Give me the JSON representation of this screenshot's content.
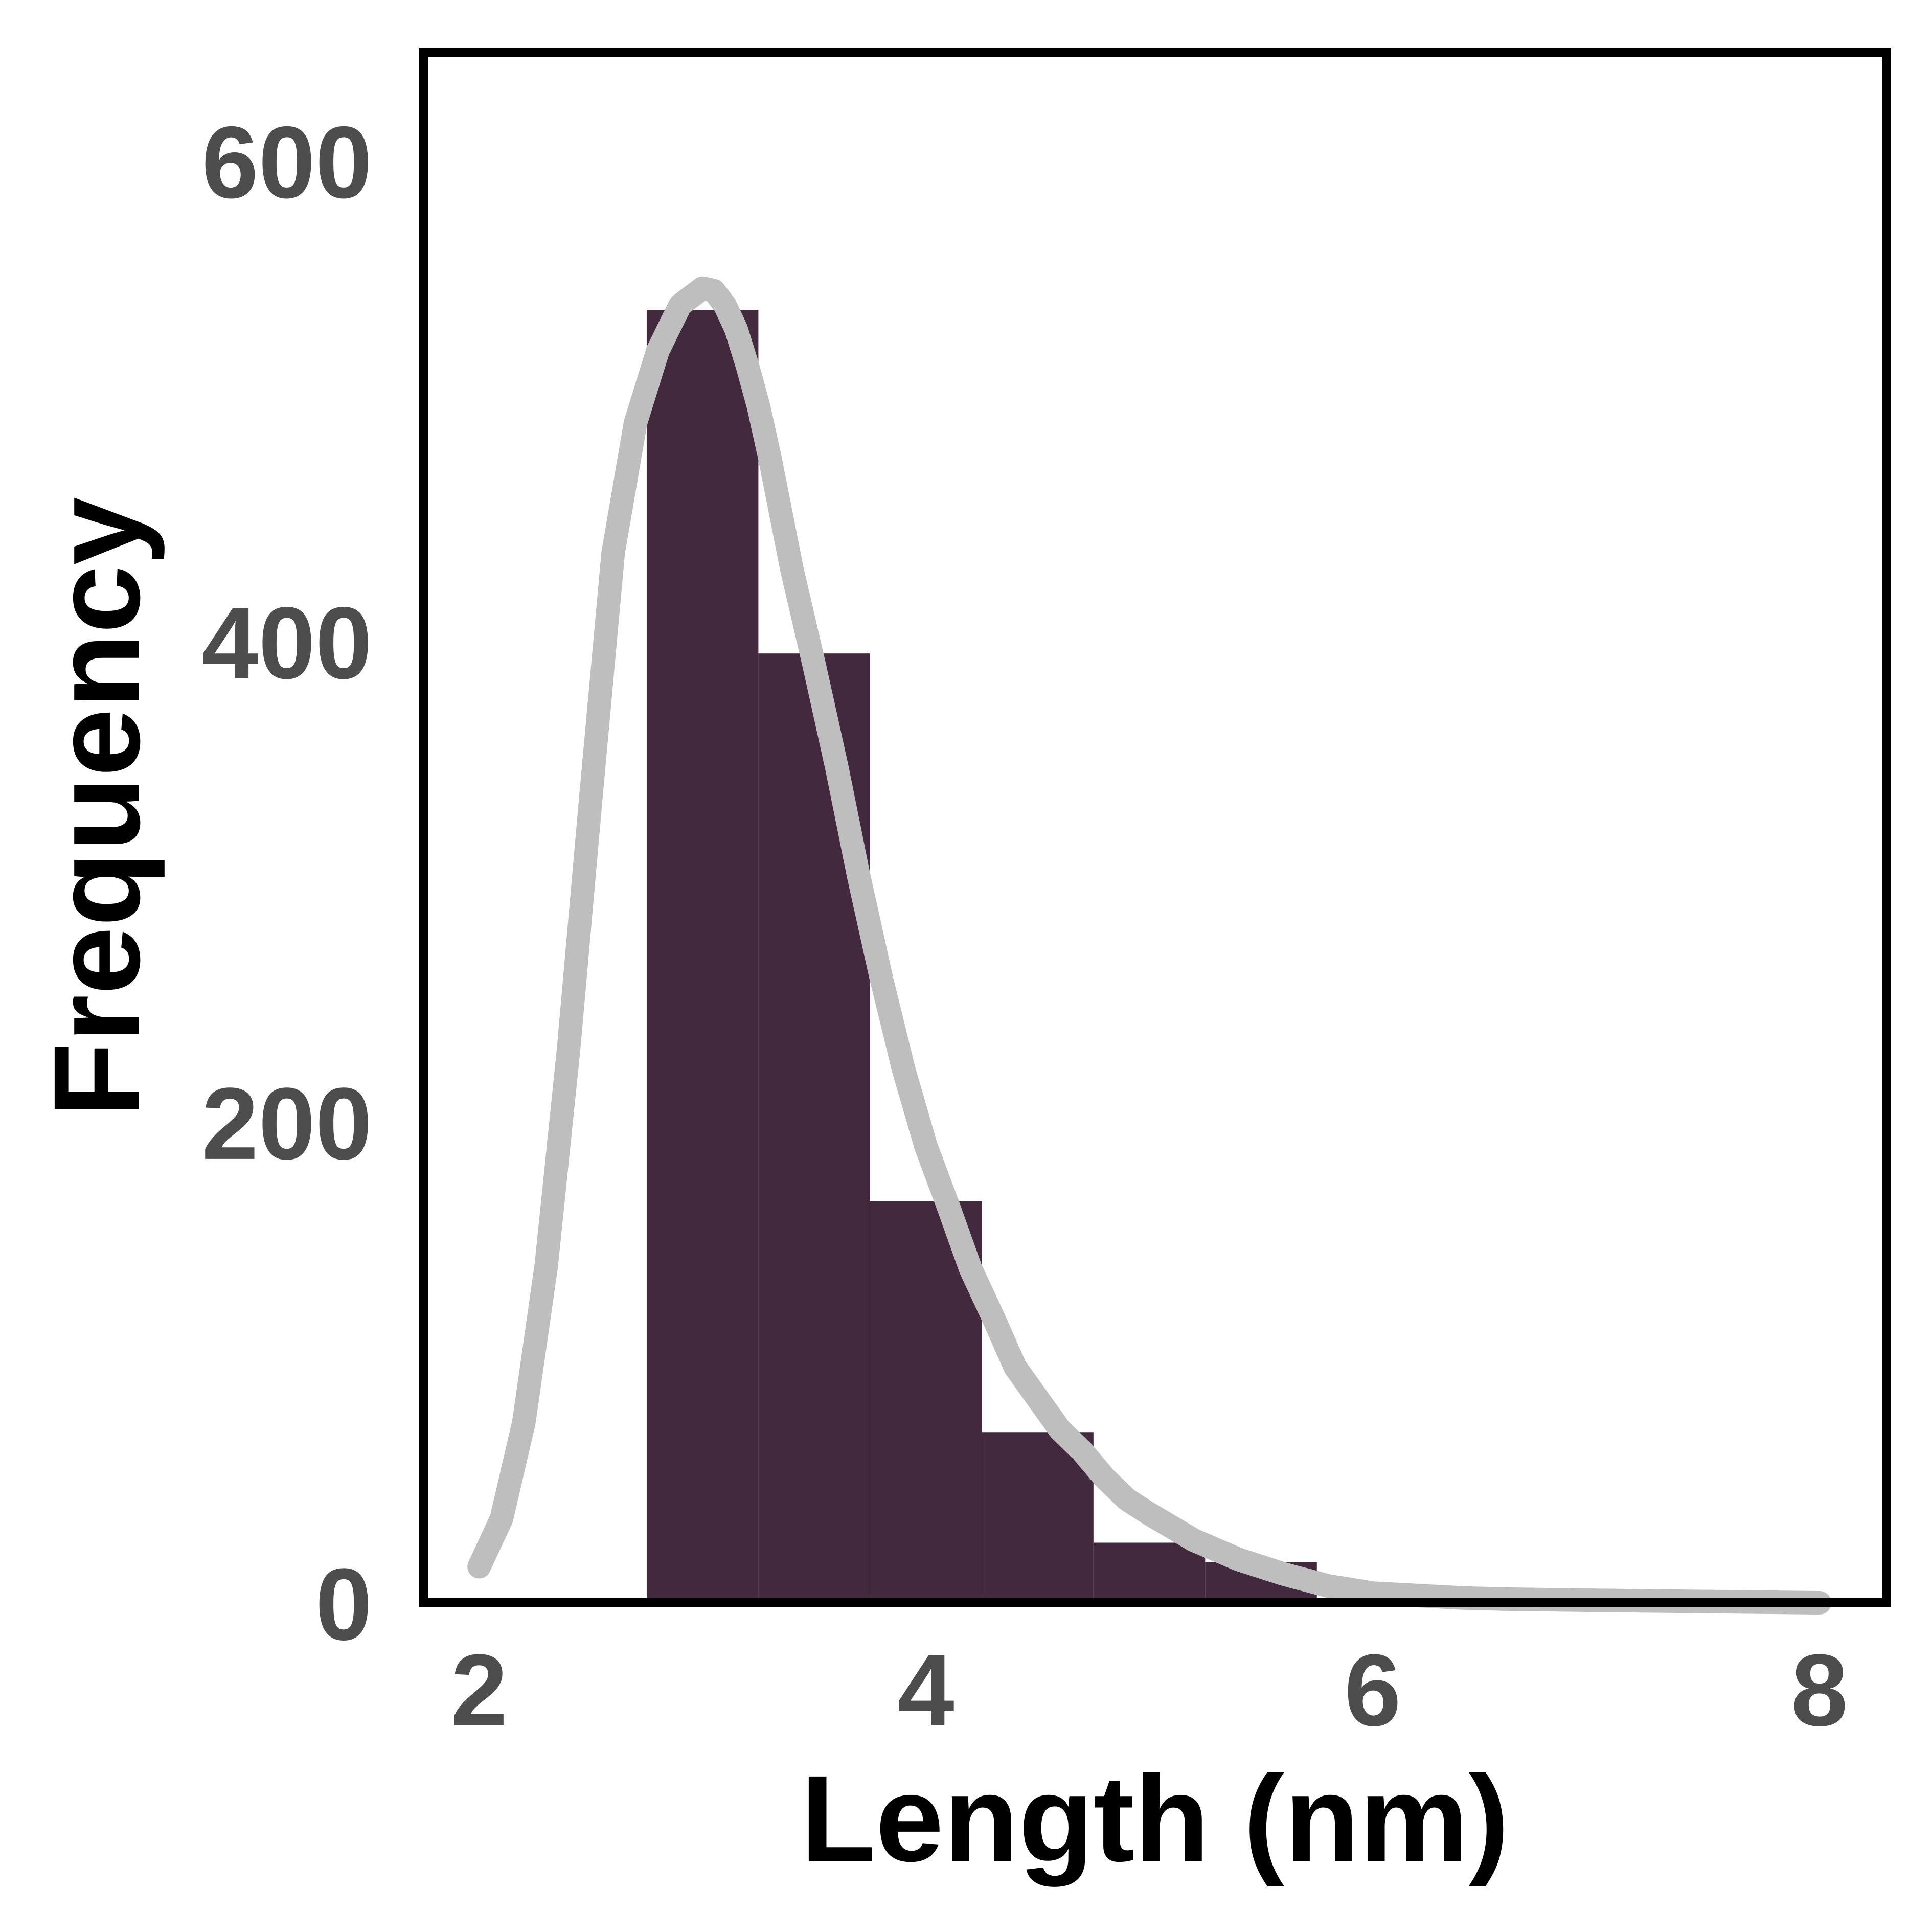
{
  "chart_data": {
    "type": "bar",
    "title": "",
    "xlabel": "Length (nm)",
    "ylabel": "Frequency",
    "xlim": [
      1.75,
      8.3
    ],
    "ylim": [
      0,
      645
    ],
    "x_ticks": [
      {
        "value": 2,
        "label": "2"
      },
      {
        "value": 4,
        "label": "4"
      },
      {
        "value": 6,
        "label": "6"
      },
      {
        "value": 8,
        "label": "8"
      }
    ],
    "y_ticks": [
      {
        "value": 0,
        "label": "0"
      },
      {
        "value": 200,
        "label": "200"
      },
      {
        "value": 400,
        "label": "400"
      },
      {
        "value": 600,
        "label": "600"
      }
    ],
    "bins": [
      {
        "x0": 2.75,
        "x1": 3.25,
        "value": 538
      },
      {
        "x0": 3.25,
        "x1": 3.75,
        "value": 395
      },
      {
        "x0": 3.75,
        "x1": 4.25,
        "value": 167
      },
      {
        "x0": 4.25,
        "x1": 4.75,
        "value": 71
      },
      {
        "x0": 4.75,
        "x1": 5.25,
        "value": 25
      },
      {
        "x0": 5.25,
        "x1": 5.75,
        "value": 17
      }
    ],
    "fit_curve": {
      "x": [
        2.0,
        2.1,
        2.2,
        2.3,
        2.4,
        2.5,
        2.6,
        2.7,
        2.8,
        2.9,
        3.0,
        3.05,
        3.1,
        3.15,
        3.2,
        3.25,
        3.3,
        3.4,
        3.5,
        3.6,
        3.7,
        3.8,
        3.9,
        4.0,
        4.1,
        4.2,
        4.3,
        4.4,
        4.5,
        4.6,
        4.7,
        4.8,
        4.9,
        5.0,
        5.2,
        5.4,
        5.6,
        5.8,
        6.0,
        6.2,
        6.4,
        6.6,
        7.0,
        7.5,
        8.0
      ],
      "y": [
        15,
        35,
        75,
        140,
        230,
        335,
        437,
        491,
        521,
        540,
        547,
        546,
        540,
        530,
        515,
        498,
        477,
        430,
        390,
        348,
        302,
        260,
        222,
        190,
        165,
        139,
        119,
        98,
        85,
        72,
        63,
        52,
        43,
        37,
        26,
        18,
        12,
        7,
        4,
        3,
        2,
        1.5,
        1,
        0.5,
        0
      ]
    },
    "bar_color": "#43293d",
    "curve_color": "#bebebe",
    "frame_color": "#000000",
    "grid": false,
    "legend": "none"
  }
}
